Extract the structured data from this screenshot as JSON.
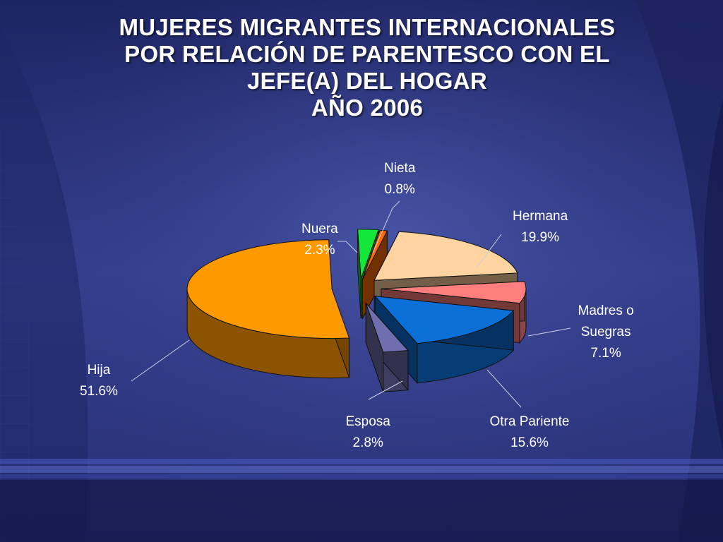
{
  "title_lines": [
    "MUJERES MIGRANTES INTERNACIONALES",
    "POR RELACIÓN DE PARENTESCO CON EL",
    "JEFE(A) DEL HOGAR",
    "AÑO 2006"
  ],
  "chart_data": {
    "type": "pie",
    "title": "MUJERES MIGRANTES INTERNACIONALES POR RELACIÓN DE PARENTESCO CON EL JEFE(A) DEL HOGAR AÑO 2006",
    "style": "3d-exploded",
    "legend": "none",
    "slices": [
      {
        "label_lines": [
          "Nieta"
        ],
        "value": 0.8,
        "display": "0.8%",
        "color": "#ff6a00"
      },
      {
        "label_lines": [
          "Hermana"
        ],
        "value": 19.9,
        "display": "19.9%",
        "color": "#ffd4a0"
      },
      {
        "label_lines": [
          "Madres o",
          "Suegras"
        ],
        "value": 7.1,
        "display": "7.1%",
        "color": "#ff7f7f"
      },
      {
        "label_lines": [
          "Otra  Pariente"
        ],
        "value": 15.6,
        "display": "15.6%",
        "color": "#0b6fd8"
      },
      {
        "label_lines": [
          "Esposa"
        ],
        "value": 2.8,
        "display": "2.8%",
        "color": "#6f6fb0"
      },
      {
        "label_lines": [
          "Hija"
        ],
        "value": 51.6,
        "display": "51.6%",
        "color": "#ff9900"
      },
      {
        "label_lines": [
          "Nuera"
        ],
        "value": 2.3,
        "display": "2.3%",
        "color": "#13e83a"
      }
    ]
  }
}
